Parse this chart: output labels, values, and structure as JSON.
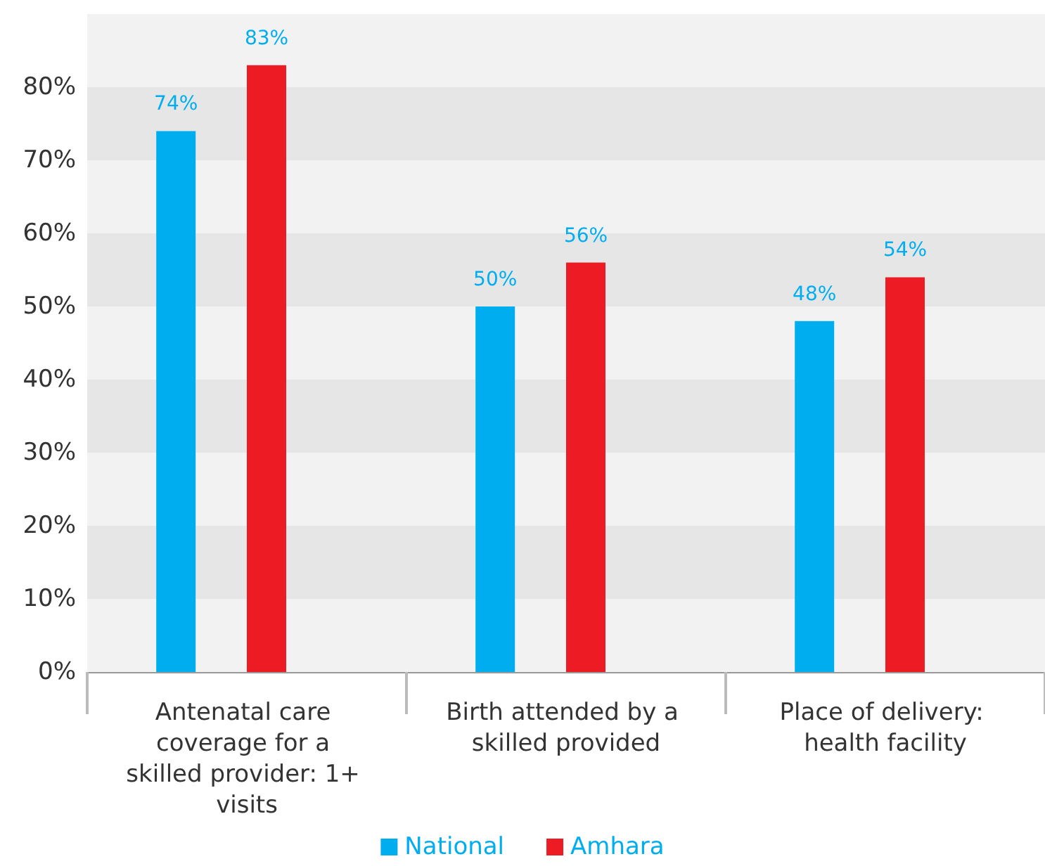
{
  "chart_data": {
    "type": "bar",
    "categories": [
      "Antenatal care coverage for a skilled provider: 1+ visits",
      "Birth attended by a skilled provided",
      "Place of delivery: health facility"
    ],
    "series": [
      {
        "name": "National",
        "color": "#00aeef",
        "values": [
          74,
          50,
          48
        ],
        "value_labels": [
          "74%",
          "50%",
          "48%"
        ]
      },
      {
        "name": "Amhara",
        "color": "#ed1c24",
        "values": [
          83,
          56,
          54
        ],
        "value_labels": [
          "83%",
          "56%",
          "54%"
        ]
      }
    ],
    "ylim": [
      0,
      90
    ],
    "yticks": [
      {
        "value": 0,
        "label": "0%"
      },
      {
        "value": 10,
        "label": "10%"
      },
      {
        "value": 20,
        "label": "20%"
      },
      {
        "value": 30,
        "label": "30%"
      },
      {
        "value": 40,
        "label": "40%"
      },
      {
        "value": 50,
        "label": "50%"
      },
      {
        "value": 60,
        "label": "60%"
      },
      {
        "value": 70,
        "label": "70%"
      },
      {
        "value": 80,
        "label": "80%"
      }
    ],
    "bands": [
      {
        "axis": "y",
        "from": 0,
        "to": 10,
        "color": "#f2f2f2"
      },
      {
        "axis": "y",
        "from": 10,
        "to": 20,
        "color": "#e6e6e6"
      },
      {
        "axis": "y",
        "from": 20,
        "to": 30,
        "color": "#f2f2f2"
      },
      {
        "axis": "y",
        "from": 30,
        "to": 40,
        "color": "#e6e6e6"
      },
      {
        "axis": "y",
        "from": 40,
        "to": 50,
        "color": "#f2f2f2"
      },
      {
        "axis": "y",
        "from": 50,
        "to": 60,
        "color": "#e6e6e6"
      },
      {
        "axis": "y",
        "from": 60,
        "to": 70,
        "color": "#f2f2f2"
      },
      {
        "axis": "y",
        "from": 70,
        "to": 80,
        "color": "#e6e6e6"
      },
      {
        "axis": "y",
        "from": 80,
        "to": 90,
        "color": "#f2f2f2"
      }
    ],
    "legend": "bottom"
  }
}
